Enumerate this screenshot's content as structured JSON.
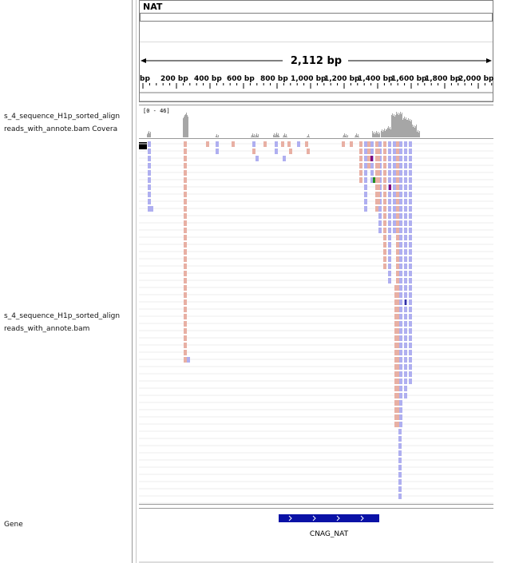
{
  "locus": {
    "chromosome": "NAT"
  },
  "ruler": {
    "span_label": "2,112 bp",
    "tick_labels": [
      "bp",
      "200 bp",
      "400 bp",
      "600 bp",
      "800 bp",
      "1,000 bp",
      "1,200 bp",
      "1,400 bp",
      "1,600 bp",
      "1,800 bp",
      "2,000 bp"
    ]
  },
  "tracks": {
    "coverage": {
      "name_line1": "s_4_sequence_H1p_sorted_align",
      "name_line2": "reads_with_annote.bam Covera",
      "range_label": "[0 - 46]"
    },
    "alignment": {
      "name_line1": "s_4_sequence_H1p_sorted_align",
      "name_line2": "reads_with_annote.bam"
    },
    "gene": {
      "name": "Gene",
      "feature_label": "CNAG_NAT"
    }
  },
  "colors": {
    "coverage": "#a6a6a6",
    "forward_read": "#e8b0a4",
    "reverse_read": "#afaff0",
    "mismatch_g": "#209020",
    "insertion": "#800080",
    "gene_feature": "#0a12a6",
    "strand_arrow": "#ffffff"
  }
}
